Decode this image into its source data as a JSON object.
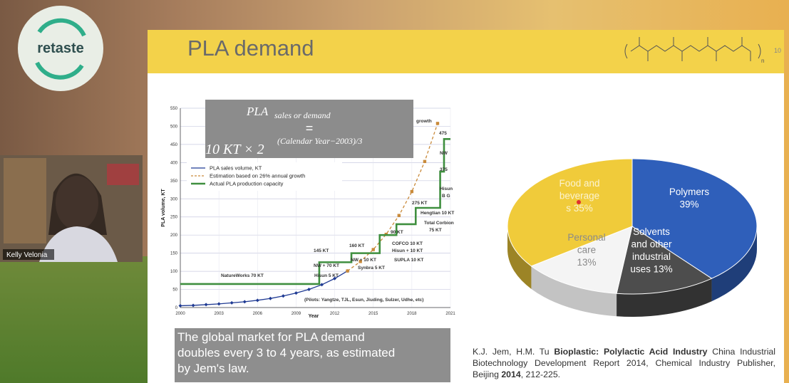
{
  "logo": {
    "text": "retaste"
  },
  "participant": {
    "name": "Kelly Velonia"
  },
  "slide": {
    "title": "PLA demand",
    "page_number": "10",
    "structure_subscript": "n",
    "chart_data": {
      "type": "line",
      "ylabel": "PLA volume, KT",
      "xlabel": "Year",
      "xlim": [
        2000,
        2021
      ],
      "xticks": [
        2000,
        2003,
        2006,
        2009,
        2012,
        2015,
        2018,
        2021
      ],
      "ylim": [
        0,
        550
      ],
      "yticks": [
        0,
        50,
        100,
        150,
        200,
        250,
        300,
        350,
        400,
        450,
        500,
        550
      ],
      "grid": true,
      "series": [
        {
          "name": "PLA sales volume, KT",
          "color": "#1f3a93",
          "marker": "diamond",
          "linestyle": "solid",
          "x": [
            2000,
            2001,
            2002,
            2003,
            2004,
            2005,
            2006,
            2007,
            2008,
            2009,
            2010,
            2011,
            2012,
            2013
          ],
          "values": [
            5,
            6,
            8,
            10,
            13,
            16,
            20,
            25,
            32,
            40,
            50,
            63,
            80,
            101
          ]
        },
        {
          "name": "Estimation based on 26% annual growth",
          "color": "#c98a3a",
          "marker": "square",
          "linestyle": "dashed",
          "x": [
            2013,
            2014,
            2015,
            2016,
            2017,
            2018,
            2019,
            2020
          ],
          "values": [
            101,
            127,
            160,
            202,
            254,
            320,
            403,
            508
          ]
        },
        {
          "name": "Actual PLA production capacity",
          "color": "#3f8f3f",
          "marker": "none",
          "linestyle": "step",
          "x": [
            2000,
            2010.8,
            2013.3,
            2015.5,
            2016.8,
            2018.3,
            2020.2,
            2020.5,
            2021
          ],
          "values": [
            65,
            125,
            150,
            200,
            230,
            275,
            375,
            465,
            465
          ]
        }
      ],
      "formula": {
        "lhs": "PLA",
        "lhs_sub": "sales or demand",
        "eq": "=",
        "rhs": "10 KT × 2",
        "rhs_exp": "(Calendar Year−2003)/3"
      },
      "annotations": [
        "NatureWorks 70 KT",
        "145 KT",
        "NW + 70 KT",
        "Hisun 5 KT",
        "160 KT",
        "NW + 10 KT",
        "Synbra 5 KT",
        "90 KT",
        "COFCO  10 KT",
        "Hisun + 10 KT",
        "SUPLA  10 KT",
        "275 KT",
        "Hengtian 10 KT",
        "Total Corbion",
        "75 KT",
        "475",
        "NW",
        "375",
        "Hisun",
        "B G",
        "growth",
        "(Pilots: Yangtze, TJL, Esun, Jiuding, Sulzer, Udhe, etc)"
      ]
    },
    "pie": {
      "type": "pie",
      "slices": [
        {
          "label_lines": [
            "Polymers",
            "39%"
          ],
          "value": 39,
          "color": "#2f5fba"
        },
        {
          "label_lines": [
            "Solvents",
            "and other",
            "industrial",
            "uses 13%"
          ],
          "value": 13,
          "color": "#4d4d4d"
        },
        {
          "label_lines": [
            "Personal",
            "care",
            "13%"
          ],
          "value": 13,
          "color": "#f4f4f4"
        },
        {
          "label_lines": [
            "Food and",
            "beverage",
            "s 35%"
          ],
          "value": 35,
          "color": "#f0cb3a"
        }
      ]
    },
    "caption": {
      "lines": [
        "The global market for PLA demand",
        "doubles every 3 to 4 years, as estimated",
        "by Jem's law."
      ]
    },
    "reference": {
      "authors": "K.J. Jem, H.M. Tu ",
      "title": "Bioplastic: Polylactic Acid Industry",
      "source": " China Industrial Biotechnology Development Report 2014, Chemical Industry Publisher, Beijing ",
      "year": "2014",
      "pages": ", 212-225."
    }
  }
}
